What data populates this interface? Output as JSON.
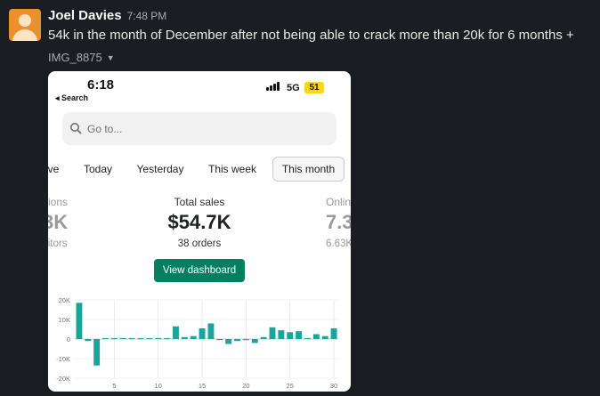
{
  "message": {
    "author": "Joel Davies",
    "time": "7:48 PM",
    "text": "54k in the month of December after not being able to crack more than 20k for 6 months +",
    "attachment_name": "IMG_8875"
  },
  "phone": {
    "status_time": "6:18",
    "back_label": "Search",
    "network": "5G",
    "battery": "51",
    "search_placeholder": "Go to...",
    "tabs": [
      {
        "label": "ve"
      },
      {
        "label": "Today"
      },
      {
        "label": "Yesterday"
      },
      {
        "label": "This week"
      },
      {
        "label": "This month",
        "active": true
      }
    ],
    "stats": {
      "left": {
        "label": "sions",
        "value": "3K",
        "sub": "sitors"
      },
      "center": {
        "label": "Total sales",
        "value": "$54.7K",
        "sub": "38 orders"
      },
      "right": {
        "label": "Onlin",
        "value": "7.3",
        "sub": "6.63K"
      }
    },
    "dashboard_button": "View dashboard"
  },
  "chart_data": {
    "type": "bar",
    "color": "#1ba39c",
    "y_ticks": [
      "20K",
      "10K",
      "0",
      "-10K",
      "-20K"
    ],
    "x_ticks": [
      "5",
      "10",
      "15",
      "20",
      "25",
      "30"
    ],
    "ylim": [
      -20000,
      20000
    ],
    "x": [
      1,
      2,
      3,
      4,
      5,
      6,
      7,
      8,
      9,
      10,
      11,
      12,
      13,
      14,
      15,
      16,
      17,
      18,
      19,
      20,
      21,
      22,
      23,
      24,
      25,
      26,
      27,
      28,
      29,
      30
    ],
    "values": [
      18500,
      -1000,
      -13500,
      500,
      500,
      500,
      500,
      500,
      500,
      500,
      500,
      6500,
      1000,
      1500,
      5500,
      8000,
      -500,
      -2500,
      -1000,
      0,
      -2000,
      1000,
      6000,
      4500,
      3500,
      4000,
      500,
      2500,
      1500,
      5500
    ]
  }
}
